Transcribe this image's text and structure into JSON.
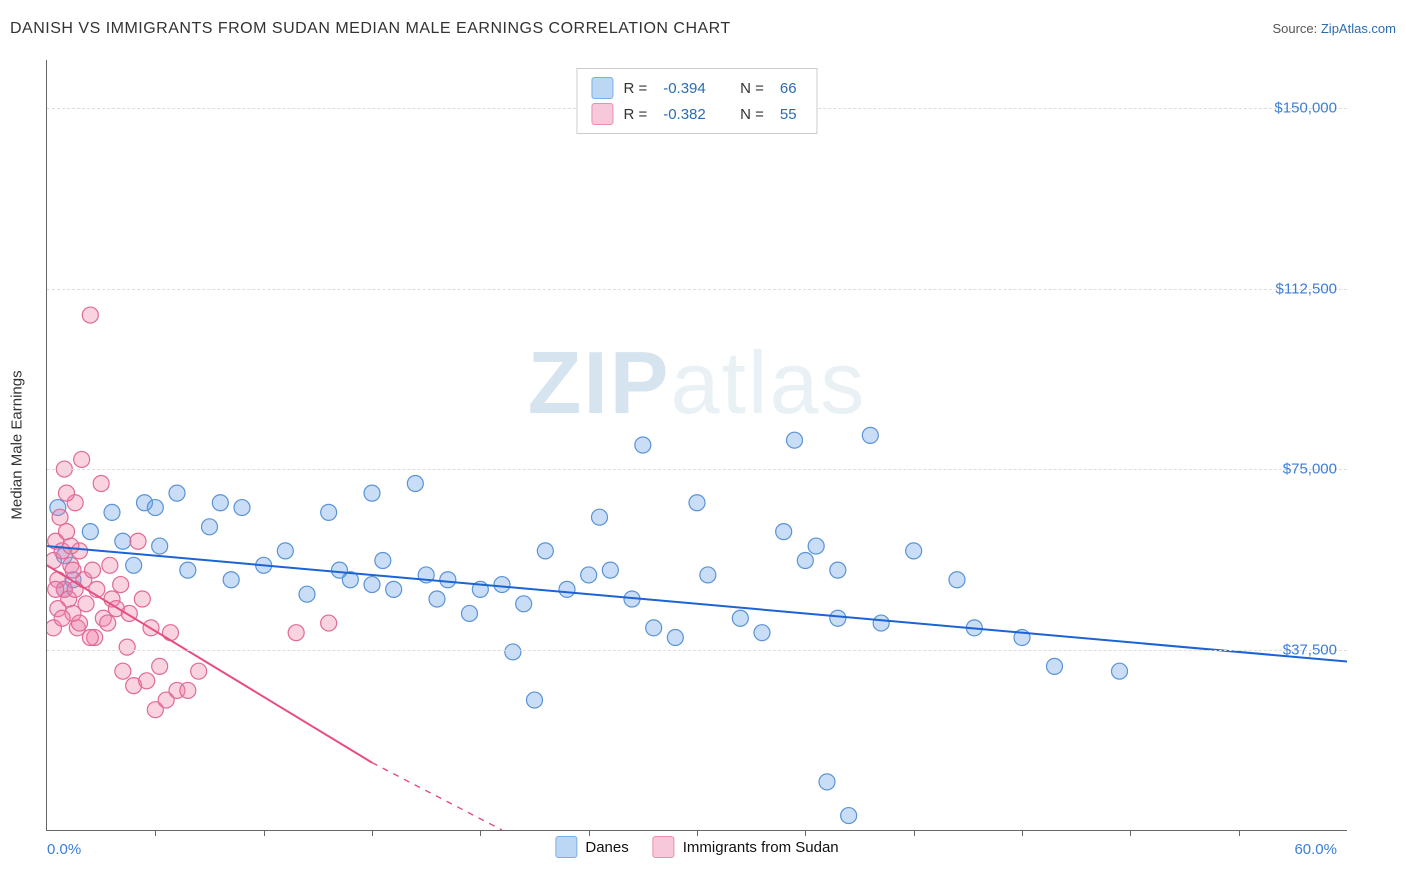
{
  "header": {
    "title": "DANISH VS IMMIGRANTS FROM SUDAN MEDIAN MALE EARNINGS CORRELATION CHART",
    "source_prefix": "Source: ",
    "source_link": "ZipAtlas.com"
  },
  "chart": {
    "type": "scatter",
    "ylabel": "Median Male Earnings",
    "xlim": [
      0,
      60
    ],
    "ylim": [
      0,
      160000
    ],
    "xmin_label": "0.0%",
    "xmax_label": "60.0%",
    "yticks": [
      37500,
      75000,
      112500,
      150000
    ],
    "ytick_labels": [
      "$37,500",
      "$75,000",
      "$112,500",
      "$150,000"
    ],
    "xtick_positions": [
      5,
      10,
      15,
      20,
      25,
      30,
      35,
      40,
      45,
      50,
      55
    ],
    "grid_color": "#dddddd",
    "background_color": "#ffffff",
    "series": [
      {
        "name": "Danes",
        "color_fill": "rgba(100,160,230,0.35)",
        "color_stroke": "#5a93d6",
        "swatch_fill": "#bcd7f3",
        "swatch_border": "#7aaee6",
        "marker_radius": 8,
        "reg_line": {
          "x1": 0,
          "y1": 59000,
          "x2": 60,
          "y2": 35000,
          "color": "#1c63d6",
          "width": 2
        },
        "stats": {
          "R": "-0.394",
          "N": "66"
        },
        "points": [
          [
            0.5,
            67000
          ],
          [
            0.8,
            57000
          ],
          [
            1.2,
            52000
          ],
          [
            15.0,
            51000
          ],
          [
            3.0,
            66000
          ],
          [
            3.5,
            60000
          ],
          [
            4.5,
            68000
          ],
          [
            5.0,
            67000
          ],
          [
            5.2,
            59000
          ],
          [
            6.0,
            70000
          ],
          [
            6.5,
            54000
          ],
          [
            7.5,
            63000
          ],
          [
            8.0,
            68000
          ],
          [
            8.5,
            52000
          ],
          [
            9.0,
            67000
          ],
          [
            10.0,
            55000
          ],
          [
            11.0,
            58000
          ],
          [
            12.0,
            49000
          ],
          [
            13.0,
            66000
          ],
          [
            13.5,
            54000
          ],
          [
            14.0,
            52000
          ],
          [
            15.0,
            70000
          ],
          [
            15.5,
            56000
          ],
          [
            16.0,
            50000
          ],
          [
            17.0,
            72000
          ],
          [
            17.5,
            53000
          ],
          [
            18.0,
            48000
          ],
          [
            18.5,
            52000
          ],
          [
            19.5,
            45000
          ],
          [
            20.0,
            50000
          ],
          [
            21.0,
            51000
          ],
          [
            21.5,
            37000
          ],
          [
            22.0,
            47000
          ],
          [
            22.5,
            27000
          ],
          [
            24.0,
            50000
          ],
          [
            25.0,
            53000
          ],
          [
            25.5,
            65000
          ],
          [
            26.0,
            54000
          ],
          [
            27.0,
            48000
          ],
          [
            27.5,
            80000
          ],
          [
            28.0,
            42000
          ],
          [
            29.0,
            40000
          ],
          [
            30.0,
            68000
          ],
          [
            30.5,
            53000
          ],
          [
            32.0,
            44000
          ],
          [
            33.0,
            41000
          ],
          [
            34.0,
            62000
          ],
          [
            34.5,
            81000
          ],
          [
            35.0,
            56000
          ],
          [
            35.5,
            59000
          ],
          [
            36.0,
            10000
          ],
          [
            36.5,
            54000
          ],
          [
            37.0,
            3000
          ],
          [
            38.0,
            82000
          ],
          [
            40.0,
            58000
          ],
          [
            42.0,
            52000
          ],
          [
            42.8,
            42000
          ],
          [
            45.0,
            40000
          ],
          [
            46.5,
            34000
          ],
          [
            49.5,
            33000
          ],
          [
            38.5,
            43000
          ],
          [
            36.5,
            44000
          ],
          [
            23.0,
            58000
          ],
          [
            2.0,
            62000
          ],
          [
            4.0,
            55000
          ],
          [
            0.8,
            50000
          ]
        ]
      },
      {
        "name": "Immigrants from Sudan",
        "color_fill": "rgba(240,130,170,0.35)",
        "color_stroke": "#e06a96",
        "swatch_fill": "#f6c8d9",
        "swatch_border": "#ea8fb2",
        "marker_radius": 8,
        "reg_line": {
          "x1": 0,
          "y1": 55000,
          "x2": 15,
          "y2": 14000,
          "dashed_ext": {
            "x2": 21,
            "y2": 0
          },
          "color": "#e84d80",
          "width": 2
        },
        "stats": {
          "R": "-0.382",
          "N": "55"
        },
        "points": [
          [
            0.3,
            56000
          ],
          [
            0.4,
            60000
          ],
          [
            0.5,
            52000
          ],
          [
            0.6,
            65000
          ],
          [
            0.7,
            58000
          ],
          [
            0.8,
            50000
          ],
          [
            0.9,
            62000
          ],
          [
            1.0,
            48000
          ],
          [
            1.1,
            55000
          ],
          [
            1.2,
            45000
          ],
          [
            1.3,
            68000
          ],
          [
            1.4,
            42000
          ],
          [
            1.5,
            58000
          ],
          [
            1.6,
            77000
          ],
          [
            1.7,
            52000
          ],
          [
            1.8,
            47000
          ],
          [
            2.0,
            107000
          ],
          [
            2.1,
            54000
          ],
          [
            2.2,
            40000
          ],
          [
            2.3,
            50000
          ],
          [
            2.5,
            72000
          ],
          [
            2.6,
            44000
          ],
          [
            2.8,
            43000
          ],
          [
            3.0,
            48000
          ],
          [
            3.2,
            46000
          ],
          [
            3.4,
            51000
          ],
          [
            3.5,
            33000
          ],
          [
            3.7,
            38000
          ],
          [
            3.8,
            45000
          ],
          [
            4.0,
            30000
          ],
          [
            4.2,
            60000
          ],
          [
            4.4,
            48000
          ],
          [
            4.6,
            31000
          ],
          [
            4.8,
            42000
          ],
          [
            5.0,
            25000
          ],
          [
            5.2,
            34000
          ],
          [
            5.5,
            27000
          ],
          [
            5.7,
            41000
          ],
          [
            6.0,
            29000
          ],
          [
            6.5,
            29000
          ],
          [
            7.0,
            33000
          ],
          [
            0.3,
            42000
          ],
          [
            0.4,
            50000
          ],
          [
            0.5,
            46000
          ],
          [
            0.7,
            44000
          ],
          [
            0.9,
            70000
          ],
          [
            1.3,
            50000
          ],
          [
            1.2,
            54000
          ],
          [
            1.1,
            59000
          ],
          [
            11.5,
            41000
          ],
          [
            13.0,
            43000
          ],
          [
            2.0,
            40000
          ],
          [
            2.9,
            55000
          ],
          [
            0.8,
            75000
          ],
          [
            1.5,
            43000
          ]
        ]
      }
    ],
    "watermark": {
      "bold": "ZIP",
      "rest": "atlas"
    },
    "legend_labels": [
      "Danes",
      "Immigrants from Sudan"
    ],
    "stat_legend_labels": {
      "R": "R =",
      "N": "N ="
    }
  }
}
